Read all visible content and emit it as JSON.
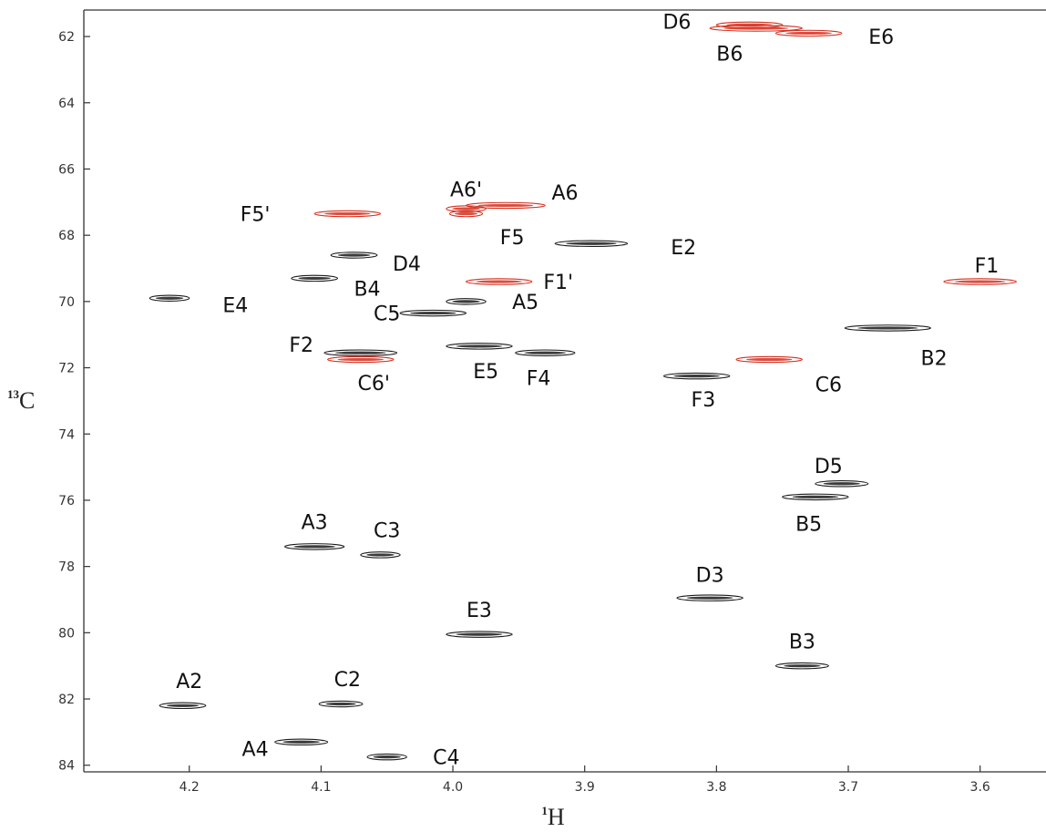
{
  "chart_data": {
    "type": "scatter",
    "title": "",
    "xlabel": {
      "sup": "1",
      "main": "H"
    },
    "ylabel": {
      "sup": "13",
      "main": "C"
    },
    "xlim": [
      4.28,
      3.55
    ],
    "ylim": [
      61.2,
      84.2
    ],
    "x_reversed": true,
    "y_reversed": true,
    "xticks": [
      4.2,
      4.1,
      4.0,
      3.9,
      3.8,
      3.7,
      3.6
    ],
    "xtick_labels": [
      "4.2",
      "4.1",
      "4.0",
      "3.9",
      "3.8",
      "3.7",
      "3.6"
    ],
    "yticks": [
      62,
      64,
      66,
      68,
      70,
      72,
      74,
      76,
      78,
      80,
      82,
      84
    ],
    "ytick_labels": [
      "62",
      "64",
      "66",
      "68",
      "70",
      "72",
      "74",
      "76",
      "78",
      "80",
      "82",
      "84"
    ],
    "grid": false,
    "colors": {
      "positive": "#1a1a1a",
      "negative": "#d32f1f"
    },
    "series": [
      {
        "kind": "positive",
        "points": [
          {
            "label": "A2",
            "x": 4.205,
            "y": 82.2,
            "w": 0.035
          },
          {
            "label": "A3",
            "x": 4.105,
            "y": 77.4,
            "w": 0.045
          },
          {
            "label": "A4",
            "x": 4.115,
            "y": 83.3,
            "w": 0.04
          },
          {
            "label": "A5",
            "x": 3.99,
            "y": 70.0,
            "w": 0.03
          },
          {
            "label": "B2",
            "x": 3.67,
            "y": 70.8,
            "w": 0.065
          },
          {
            "label": "B3",
            "x": 3.735,
            "y": 81.0,
            "w": 0.04
          },
          {
            "label": "B4",
            "x": 4.105,
            "y": 69.3,
            "w": 0.035
          },
          {
            "label": "B5",
            "x": 3.725,
            "y": 75.9,
            "w": 0.05
          },
          {
            "label": "C2",
            "x": 4.085,
            "y": 82.15,
            "w": 0.033
          },
          {
            "label": "C3",
            "x": 4.055,
            "y": 77.65,
            "w": 0.03
          },
          {
            "label": "C4",
            "x": 4.05,
            "y": 83.75,
            "w": 0.03
          },
          {
            "label": "C5",
            "x": 4.015,
            "y": 70.35,
            "w": 0.05
          },
          {
            "label": "D3",
            "x": 3.805,
            "y": 78.95,
            "w": 0.05
          },
          {
            "label": "D4",
            "x": 4.075,
            "y": 68.6,
            "w": 0.035
          },
          {
            "label": "D5",
            "x": 3.705,
            "y": 75.5,
            "w": 0.04
          },
          {
            "label": "E2",
            "x": 3.895,
            "y": 68.25,
            "w": 0.055
          },
          {
            "label": "E3",
            "x": 3.98,
            "y": 80.05,
            "w": 0.05
          },
          {
            "label": "E4",
            "x": 4.215,
            "y": 69.9,
            "w": 0.03
          },
          {
            "label": "E5",
            "x": 3.98,
            "y": 71.35,
            "w": 0.05
          },
          {
            "label": "F2",
            "x": 4.07,
            "y": 71.55,
            "w": 0.055
          },
          {
            "label": "F3",
            "x": 3.815,
            "y": 72.25,
            "w": 0.05
          },
          {
            "label": "F4",
            "x": 3.93,
            "y": 71.55,
            "w": 0.045
          }
        ]
      },
      {
        "kind": "negative",
        "points": [
          {
            "label": "A6",
            "x": 3.96,
            "y": 67.1,
            "w": 0.06
          },
          {
            "label": "A6'",
            "x": 3.99,
            "y": 67.2,
            "w": 0.03
          },
          {
            "label": "B6",
            "x": 3.77,
            "y": 61.75,
            "w": 0.07
          },
          {
            "label": "C6",
            "x": 3.76,
            "y": 71.75,
            "w": 0.05
          },
          {
            "label": "C6'",
            "x": 4.07,
            "y": 71.75,
            "w": 0.05
          },
          {
            "label": "D6",
            "x": 3.775,
            "y": 61.65,
            "w": 0.05
          },
          {
            "label": "E6",
            "x": 3.73,
            "y": 61.9,
            "w": 0.05
          },
          {
            "label": "F1",
            "x": 3.6,
            "y": 69.4,
            "w": 0.055
          },
          {
            "label": "F1'",
            "x": 3.965,
            "y": 69.4,
            "w": 0.05
          },
          {
            "label": "F5",
            "x": 3.99,
            "y": 67.35,
            "w": 0.025
          },
          {
            "label": "F5'",
            "x": 4.08,
            "y": 67.35,
            "w": 0.05
          }
        ]
      }
    ],
    "annotations": [
      {
        "text": "D6",
        "x": 3.83,
        "y": 61.55
      },
      {
        "text": "B6",
        "x": 3.79,
        "y": 62.5
      },
      {
        "text": "E6",
        "x": 3.675,
        "y": 62.0
      },
      {
        "text": "A6'",
        "x": 3.99,
        "y": 66.6
      },
      {
        "text": "A6",
        "x": 3.915,
        "y": 66.7
      },
      {
        "text": "F5'",
        "x": 4.15,
        "y": 67.35
      },
      {
        "text": "F5",
        "x": 3.955,
        "y": 68.05
      },
      {
        "text": "E2",
        "x": 3.825,
        "y": 68.35
      },
      {
        "text": "D4",
        "x": 4.035,
        "y": 68.85
      },
      {
        "text": "B4",
        "x": 4.065,
        "y": 69.6
      },
      {
        "text": "E4",
        "x": 4.165,
        "y": 70.1
      },
      {
        "text": "F1'",
        "x": 3.92,
        "y": 69.4
      },
      {
        "text": "A5",
        "x": 3.945,
        "y": 70.0
      },
      {
        "text": "C5",
        "x": 4.05,
        "y": 70.35
      },
      {
        "text": "F2",
        "x": 4.115,
        "y": 71.3
      },
      {
        "text": "C6'",
        "x": 4.06,
        "y": 72.45
      },
      {
        "text": "E5",
        "x": 3.975,
        "y": 72.1
      },
      {
        "text": "F4",
        "x": 3.935,
        "y": 72.3
      },
      {
        "text": "F3",
        "x": 3.81,
        "y": 72.95
      },
      {
        "text": "C6",
        "x": 3.715,
        "y": 72.5
      },
      {
        "text": "B2",
        "x": 3.635,
        "y": 71.7
      },
      {
        "text": "F1",
        "x": 3.595,
        "y": 68.9
      },
      {
        "text": "D5",
        "x": 3.715,
        "y": 74.95
      },
      {
        "text": "B5",
        "x": 3.73,
        "y": 76.7
      },
      {
        "text": "A3",
        "x": 4.105,
        "y": 76.65
      },
      {
        "text": "C3",
        "x": 4.05,
        "y": 76.9
      },
      {
        "text": "D3",
        "x": 3.805,
        "y": 78.25
      },
      {
        "text": "E3",
        "x": 3.98,
        "y": 79.3
      },
      {
        "text": "B3",
        "x": 3.735,
        "y": 80.25
      },
      {
        "text": "A2",
        "x": 4.2,
        "y": 81.45
      },
      {
        "text": "C2",
        "x": 4.08,
        "y": 81.4
      },
      {
        "text": "A4",
        "x": 4.15,
        "y": 83.5
      },
      {
        "text": "C4",
        "x": 4.005,
        "y": 83.75
      }
    ]
  }
}
